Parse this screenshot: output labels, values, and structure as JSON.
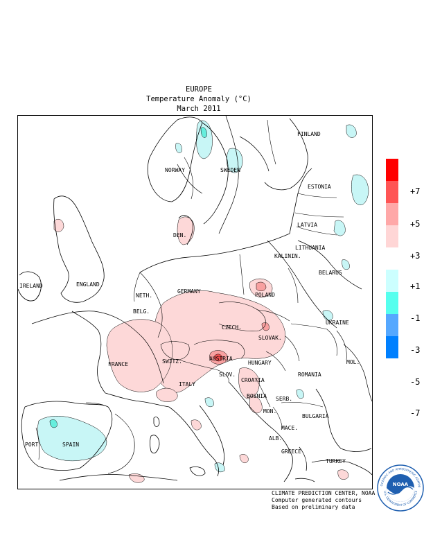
{
  "title": {
    "region": "EUROPE",
    "subtitle": "Temperature Anomaly (°C)",
    "period": "March 2011"
  },
  "countries": [
    {
      "id": "finland",
      "label": "FINLAND"
    },
    {
      "id": "norway",
      "label": "NORWAY"
    },
    {
      "id": "sweden",
      "label": "SWEDEN"
    },
    {
      "id": "estonia",
      "label": "ESTONIA"
    },
    {
      "id": "latvia",
      "label": "LATVIA"
    },
    {
      "id": "lithuania",
      "label": "LITHUANIA"
    },
    {
      "id": "kalin",
      "label": "KALININ."
    },
    {
      "id": "den",
      "label": "DEN."
    },
    {
      "id": "belarus",
      "label": "BELARUS"
    },
    {
      "id": "ireland",
      "label": "IRELAND"
    },
    {
      "id": "england",
      "label": "ENGLAND"
    },
    {
      "id": "neth",
      "label": "NETH."
    },
    {
      "id": "germany",
      "label": "GERMANY"
    },
    {
      "id": "poland",
      "label": "POLAND"
    },
    {
      "id": "belg",
      "label": "BELG."
    },
    {
      "id": "czech",
      "label": "CZECH."
    },
    {
      "id": "ukraine",
      "label": "UKRAINE"
    },
    {
      "id": "slovak",
      "label": "SLOVAK."
    },
    {
      "id": "france",
      "label": "FRANCE"
    },
    {
      "id": "switz",
      "label": "SWITZ."
    },
    {
      "id": "austria",
      "label": "AUSTRIA"
    },
    {
      "id": "hungary",
      "label": "HUNGARY"
    },
    {
      "id": "mol",
      "label": "MOL."
    },
    {
      "id": "romania",
      "label": "ROMANIA"
    },
    {
      "id": "slov",
      "label": "SLOV."
    },
    {
      "id": "croatia",
      "label": "CROATIA"
    },
    {
      "id": "italy",
      "label": "ITALY"
    },
    {
      "id": "bosnia",
      "label": "BOSNIA"
    },
    {
      "id": "serb",
      "label": "SERB."
    },
    {
      "id": "mon",
      "label": "MON."
    },
    {
      "id": "bulgaria",
      "label": "BULGARIA"
    },
    {
      "id": "mace",
      "label": "MACE."
    },
    {
      "id": "alb",
      "label": "ALB."
    },
    {
      "id": "greece",
      "label": "GREECE"
    },
    {
      "id": "port",
      "label": "PORT"
    },
    {
      "id": "spain",
      "label": "SPAIN"
    },
    {
      "id": "turkey",
      "label": "TURKEY"
    }
  ],
  "legend": {
    "bins": [
      {
        "color": "#ff0000"
      },
      {
        "color": "#ff5555"
      },
      {
        "color": "#ffa8a8"
      },
      {
        "color": "#ffd6d6"
      },
      {
        "color": "#ffffff"
      },
      {
        "color": "#ccffff"
      },
      {
        "color": "#55ffee"
      },
      {
        "color": "#55a8ff"
      },
      {
        "color": "#0080ff"
      }
    ],
    "labels": [
      "+7",
      "+5",
      "+3",
      "+1",
      "-1",
      "-3",
      "-5",
      "-7"
    ]
  },
  "colors": {
    "warm_light": "#fdd8d8",
    "warm_mid": "#f8a0a0",
    "warm_strong": "#f05050",
    "cool_light": "#c8f6f6",
    "cool_mid": "#66eedd"
  },
  "credits": {
    "line1": "CLIMATE PREDICTION CENTER, NOAA",
    "line2": "Computer generated contours",
    "line3": "Based on preliminary data"
  },
  "logo": {
    "text": "NOAA",
    "ring_top": "NATIONAL OCEANIC AND ATMOSPHERIC ADMINISTRATION",
    "ring_bottom": "U.S. DEPARTMENT OF COMMERCE"
  }
}
